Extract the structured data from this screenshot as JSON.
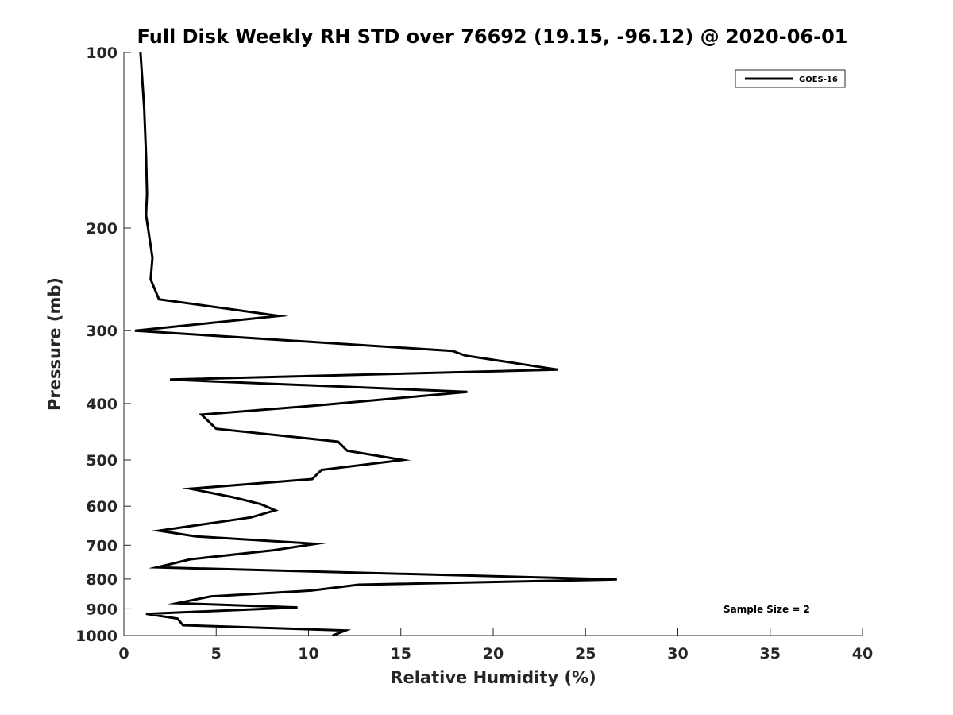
{
  "chart_data": {
    "type": "line",
    "title": "Full Disk Weekly RH STD over 76692 (19.15, -96.12) @ 2020-06-01",
    "xlabel": "Relative Humidity (%)",
    "ylabel": "Pressure (mb)",
    "xlim": [
      0,
      40
    ],
    "ylim": [
      100,
      1000
    ],
    "y_scale": "log",
    "y_reversed": true,
    "x_ticks": [
      0,
      5,
      10,
      15,
      20,
      25,
      30,
      35,
      40
    ],
    "y_ticks": [
      100,
      200,
      300,
      400,
      500,
      600,
      700,
      800,
      900,
      1000
    ],
    "grid": false,
    "legend_position": "top-right",
    "annotation": "Sample Size = 2",
    "series": [
      {
        "name": "GOES-16",
        "color": "#000000",
        "points": [
          [
            0.9,
            100
          ],
          [
            1.1,
            125
          ],
          [
            1.2,
            150
          ],
          [
            1.25,
            175
          ],
          [
            1.2,
            190
          ],
          [
            1.55,
            225
          ],
          [
            1.45,
            245
          ],
          [
            1.9,
            265
          ],
          [
            8.4,
            283
          ],
          [
            0.6,
            300
          ],
          [
            17.8,
            325
          ],
          [
            18.5,
            331
          ],
          [
            23.5,
            350
          ],
          [
            2.5,
            364
          ],
          [
            18.6,
            382
          ],
          [
            10.5,
            403
          ],
          [
            4.2,
            418
          ],
          [
            5.0,
            442
          ],
          [
            11.6,
            465
          ],
          [
            12.1,
            482
          ],
          [
            15.1,
            500
          ],
          [
            10.7,
            520
          ],
          [
            10.2,
            539
          ],
          [
            3.6,
            560
          ],
          [
            6.0,
            580
          ],
          [
            7.4,
            595
          ],
          [
            8.2,
            610
          ],
          [
            6.9,
            627
          ],
          [
            1.9,
            661
          ],
          [
            3.9,
            676
          ],
          [
            10.4,
            696
          ],
          [
            8.1,
            714
          ],
          [
            3.6,
            740
          ],
          [
            1.8,
            764
          ],
          [
            26.7,
            801
          ],
          [
            12.7,
            818
          ],
          [
            10.2,
            837
          ],
          [
            4.7,
            857
          ],
          [
            2.9,
            880
          ],
          [
            9.4,
            895
          ],
          [
            1.2,
            918
          ],
          [
            2.9,
            935
          ],
          [
            3.2,
            960
          ],
          [
            12.0,
            980
          ],
          [
            11.3,
            1000
          ]
        ]
      }
    ]
  }
}
